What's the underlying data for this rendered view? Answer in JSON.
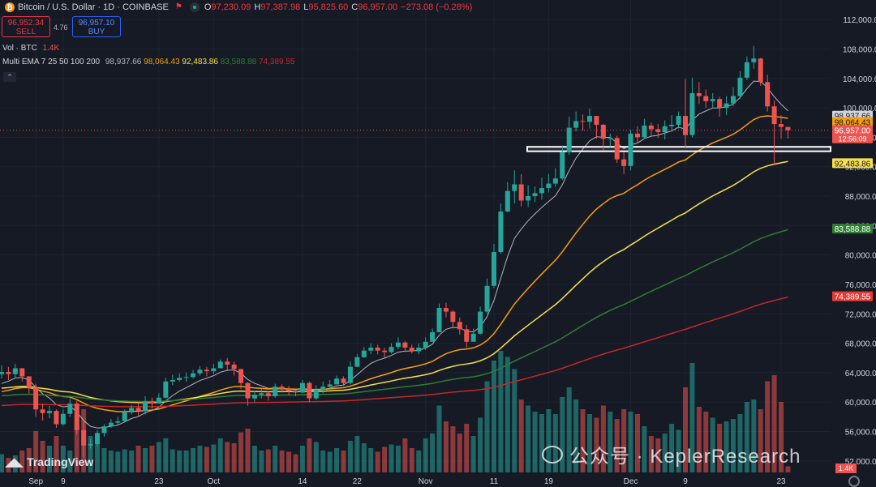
{
  "header": {
    "symbol": "Bitcoin / U.S. Dollar · 1D · COINBASE",
    "open_label": "O",
    "open": "97,230.09",
    "high_label": "H",
    "high": "97,387.98",
    "low_label": "L",
    "low": "95,825.60",
    "close_label": "C",
    "close": "96,957.00",
    "change": "−273.08 (−0.28%)"
  },
  "trade": {
    "sell_price": "96,952.34",
    "sell_label": "SELL",
    "spread": "4.76",
    "buy_price": "96,957.10",
    "buy_label": "BUY"
  },
  "volume_legend": {
    "name": "Vol · BTC",
    "value": "1.4K"
  },
  "ema_legend": {
    "name": "Multi EMA 7 25 50 100 200",
    "values": [
      "98,937.66",
      "98,064.43",
      "92,483.86",
      "83,588.88",
      "74,389.55"
    ],
    "colors": [
      "#b2b5be",
      "#f59e0b",
      "#f5e050",
      "#2e7d32",
      "#c62828"
    ]
  },
  "branding": {
    "logo_text": "TradingView",
    "watermark": "公众号 · KeplerResearch"
  },
  "colors": {
    "background": "#161a25",
    "up": "#26a69a",
    "down": "#ef5350",
    "grid": "#1f2330"
  },
  "chart_data": {
    "type": "candlestick",
    "title": "Bitcoin / U.S. Dollar · 1D · COINBASE",
    "ylim": [
      50000,
      114000
    ],
    "y_ticks": [
      52000,
      56000,
      60000,
      64000,
      68000,
      72000,
      76000,
      80000,
      84000,
      88000,
      92000,
      96000,
      100000,
      104000,
      108000,
      112000
    ],
    "y_tick_labels": [
      "52,000.00",
      "56,000.00",
      "60,000.00",
      "64,000.00",
      "68,000.00",
      "72,000.00",
      "76,000.00",
      "80,000.00",
      "84,000.00",
      "88,000.00",
      "92,000.00",
      "96,000.00",
      "100,000.00",
      "104,000.00",
      "108,000.00",
      "112,000.00"
    ],
    "x_labels": [
      {
        "label": "Sep",
        "day": 5
      },
      {
        "label": "9",
        "day": 9
      },
      {
        "label": "23",
        "day": 23
      },
      {
        "label": "Oct",
        "day": 31
      },
      {
        "label": "14",
        "day": 44
      },
      {
        "label": "22",
        "day": 52
      },
      {
        "label": "Nov",
        "day": 62
      },
      {
        "label": "11",
        "day": 72
      },
      {
        "label": "19",
        "day": 80
      },
      {
        "label": "Dec",
        "day": 92
      },
      {
        "label": "9",
        "day": 100
      },
      {
        "label": "23",
        "day": 114
      }
    ],
    "price_close": [
      64100,
      63800,
      64600,
      63500,
      62000,
      59000,
      58500,
      58800,
      57000,
      58400,
      59800,
      56200,
      54100,
      54300,
      55800,
      56700,
      57200,
      57400,
      58600,
      59200,
      58800,
      60100,
      59800,
      60600,
      62800,
      63000,
      63300,
      63400,
      63900,
      64400,
      64200,
      64600,
      65500,
      65100,
      64500,
      62600,
      60500,
      61000,
      61200,
      60800,
      62100,
      61800,
      61500,
      61300,
      62600,
      60500,
      61700,
      62100,
      62400,
      63200,
      62600,
      64800,
      66100,
      67000,
      67400,
      67000,
      66800,
      67500,
      68100,
      67400,
      66900,
      67400,
      68200,
      69500,
      72800,
      72300,
      70900,
      69900,
      68200,
      69300,
      72300,
      75800,
      80400,
      85900,
      88700,
      89600,
      87400,
      88000,
      88400,
      89100,
      89700,
      90400,
      94000,
      97300,
      98200,
      98100,
      98900,
      97700,
      95800,
      95900,
      93000,
      92100,
      96500,
      96000,
      97600,
      97100,
      96700,
      97500,
      97700,
      98900,
      96300,
      102000,
      101600,
      100900,
      101200,
      100000,
      100600,
      101600,
      104100,
      106200,
      106700,
      103500,
      100200,
      97800,
      97400,
      96957
    ],
    "price_high": [
      65000,
      64800,
      65200,
      64600,
      63500,
      62500,
      59800,
      59500,
      59000,
      59000,
      60500,
      60200,
      57500,
      55000,
      56200,
      57000,
      57700,
      58000,
      59000,
      59600,
      59800,
      60800,
      60600,
      61200,
      63300,
      63700,
      63900,
      64000,
      64400,
      64900,
      64800,
      65200,
      65800,
      66000,
      65500,
      64500,
      62700,
      61500,
      61800,
      61500,
      62500,
      62400,
      62200,
      61700,
      63000,
      62800,
      62300,
      62800,
      63000,
      63600,
      63500,
      65500,
      66500,
      67500,
      68000,
      67800,
      67400,
      68000,
      68800,
      68300,
      67800,
      68000,
      68800,
      70000,
      73400,
      73500,
      72500,
      71500,
      70500,
      70000,
      73000,
      76800,
      81500,
      87000,
      89900,
      91500,
      91000,
      89500,
      89300,
      90500,
      91000,
      91800,
      94900,
      98800,
      99500,
      99100,
      99900,
      98700,
      97800,
      96500,
      96200,
      94000,
      97000,
      97500,
      98500,
      98000,
      97800,
      98300,
      99000,
      99500,
      103900,
      104100,
      103500,
      102500,
      102000,
      101500,
      101600,
      102800,
      105000,
      107000,
      108400,
      106800,
      104500,
      101000,
      99000,
      97400
    ],
    "price_low": [
      63200,
      63000,
      63200,
      62800,
      61200,
      58000,
      57500,
      57800,
      56500,
      56800,
      58000,
      55600,
      52500,
      53700,
      54000,
      55300,
      56500,
      56800,
      57500,
      58300,
      58000,
      58300,
      59100,
      59800,
      60500,
      62300,
      62800,
      62800,
      63200,
      63600,
      63500,
      63800,
      64600,
      64200,
      63600,
      61800,
      59500,
      60000,
      60500,
      60200,
      60600,
      61300,
      60900,
      60800,
      61200,
      60000,
      60300,
      61200,
      61800,
      62500,
      62200,
      62400,
      64800,
      66000,
      66500,
      66500,
      66000,
      66600,
      67200,
      66800,
      66600,
      66500,
      67100,
      68500,
      69500,
      71500,
      70000,
      69200,
      67400,
      68300,
      69200,
      72000,
      75500,
      80200,
      85800,
      87000,
      86600,
      86500,
      87200,
      87500,
      88500,
      89300,
      90200,
      93600,
      96800,
      96900,
      97200,
      95800,
      94200,
      94700,
      92500,
      91000,
      91500,
      95200,
      95800,
      96100,
      95900,
      95700,
      97000,
      97200,
      94500,
      96000,
      100500,
      100000,
      100000,
      98800,
      99000,
      100200,
      101200,
      103800,
      105300,
      103000,
      99500,
      92200,
      95800,
      95825
    ],
    "volume": [
      15,
      12,
      14,
      18,
      20,
      34,
      26,
      22,
      30,
      22,
      18,
      40,
      52,
      30,
      25,
      20,
      18,
      17,
      19,
      18,
      22,
      20,
      22,
      25,
      28,
      19,
      18,
      18,
      20,
      22,
      21,
      23,
      28,
      25,
      24,
      33,
      36,
      22,
      18,
      19,
      22,
      18,
      17,
      15,
      22,
      28,
      25,
      18,
      17,
      20,
      18,
      26,
      30,
      24,
      20,
      17,
      21,
      23,
      22,
      28,
      20,
      18,
      28,
      32,
      55,
      42,
      38,
      32,
      40,
      30,
      45,
      75,
      92,
      100,
      95,
      85,
      60,
      55,
      50,
      48,
      52,
      48,
      62,
      70,
      60,
      52,
      48,
      45,
      55,
      50,
      44,
      52,
      50,
      48,
      38,
      30,
      28,
      32,
      40,
      35,
      70,
      90,
      54,
      50,
      45,
      40,
      42,
      44,
      48,
      58,
      60,
      52,
      75,
      80,
      58,
      5
    ],
    "volume_label": "1.4K",
    "ema_last": {
      "ema7": 98937.66,
      "ema25": 98064.43,
      "ema50": 92483.86,
      "ema100": 83588.88,
      "ema200": 74389.55
    },
    "ema_colors": [
      "#b2b5be",
      "#f59e0b",
      "#f5e050",
      "#2e7d32",
      "#c62828"
    ],
    "ema_start": [
      62000,
      61200,
      61800,
      60800,
      59500
    ],
    "ema_last_labels": [
      "98,937.66",
      "98,064.43",
      "92,483.86",
      "83,588.88",
      "74,389.55"
    ],
    "last_price_label": "96,957.00",
    "countdown": "12:56:09",
    "support_zone": {
      "low": 94100,
      "high": 94700
    }
  }
}
